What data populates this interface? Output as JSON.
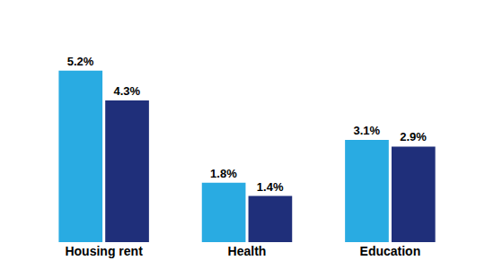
{
  "chart_data": {
    "type": "bar",
    "categories": [
      "Housing rent",
      "Health",
      "Education"
    ],
    "series": [
      {
        "color": "#29ABE2",
        "values": [
          5.2,
          1.8,
          3.1
        ],
        "value_labels": [
          "5.2%",
          "1.8%",
          "3.1%"
        ]
      },
      {
        "color": "#1F2F7A",
        "values": [
          4.3,
          1.4,
          2.9
        ],
        "value_labels": [
          "4.3%",
          "1.4%",
          "2.9%"
        ]
      }
    ],
    "ylim": [
      0,
      6.8
    ],
    "data_labels": true,
    "tick_labels": "x",
    "grid": false
  }
}
